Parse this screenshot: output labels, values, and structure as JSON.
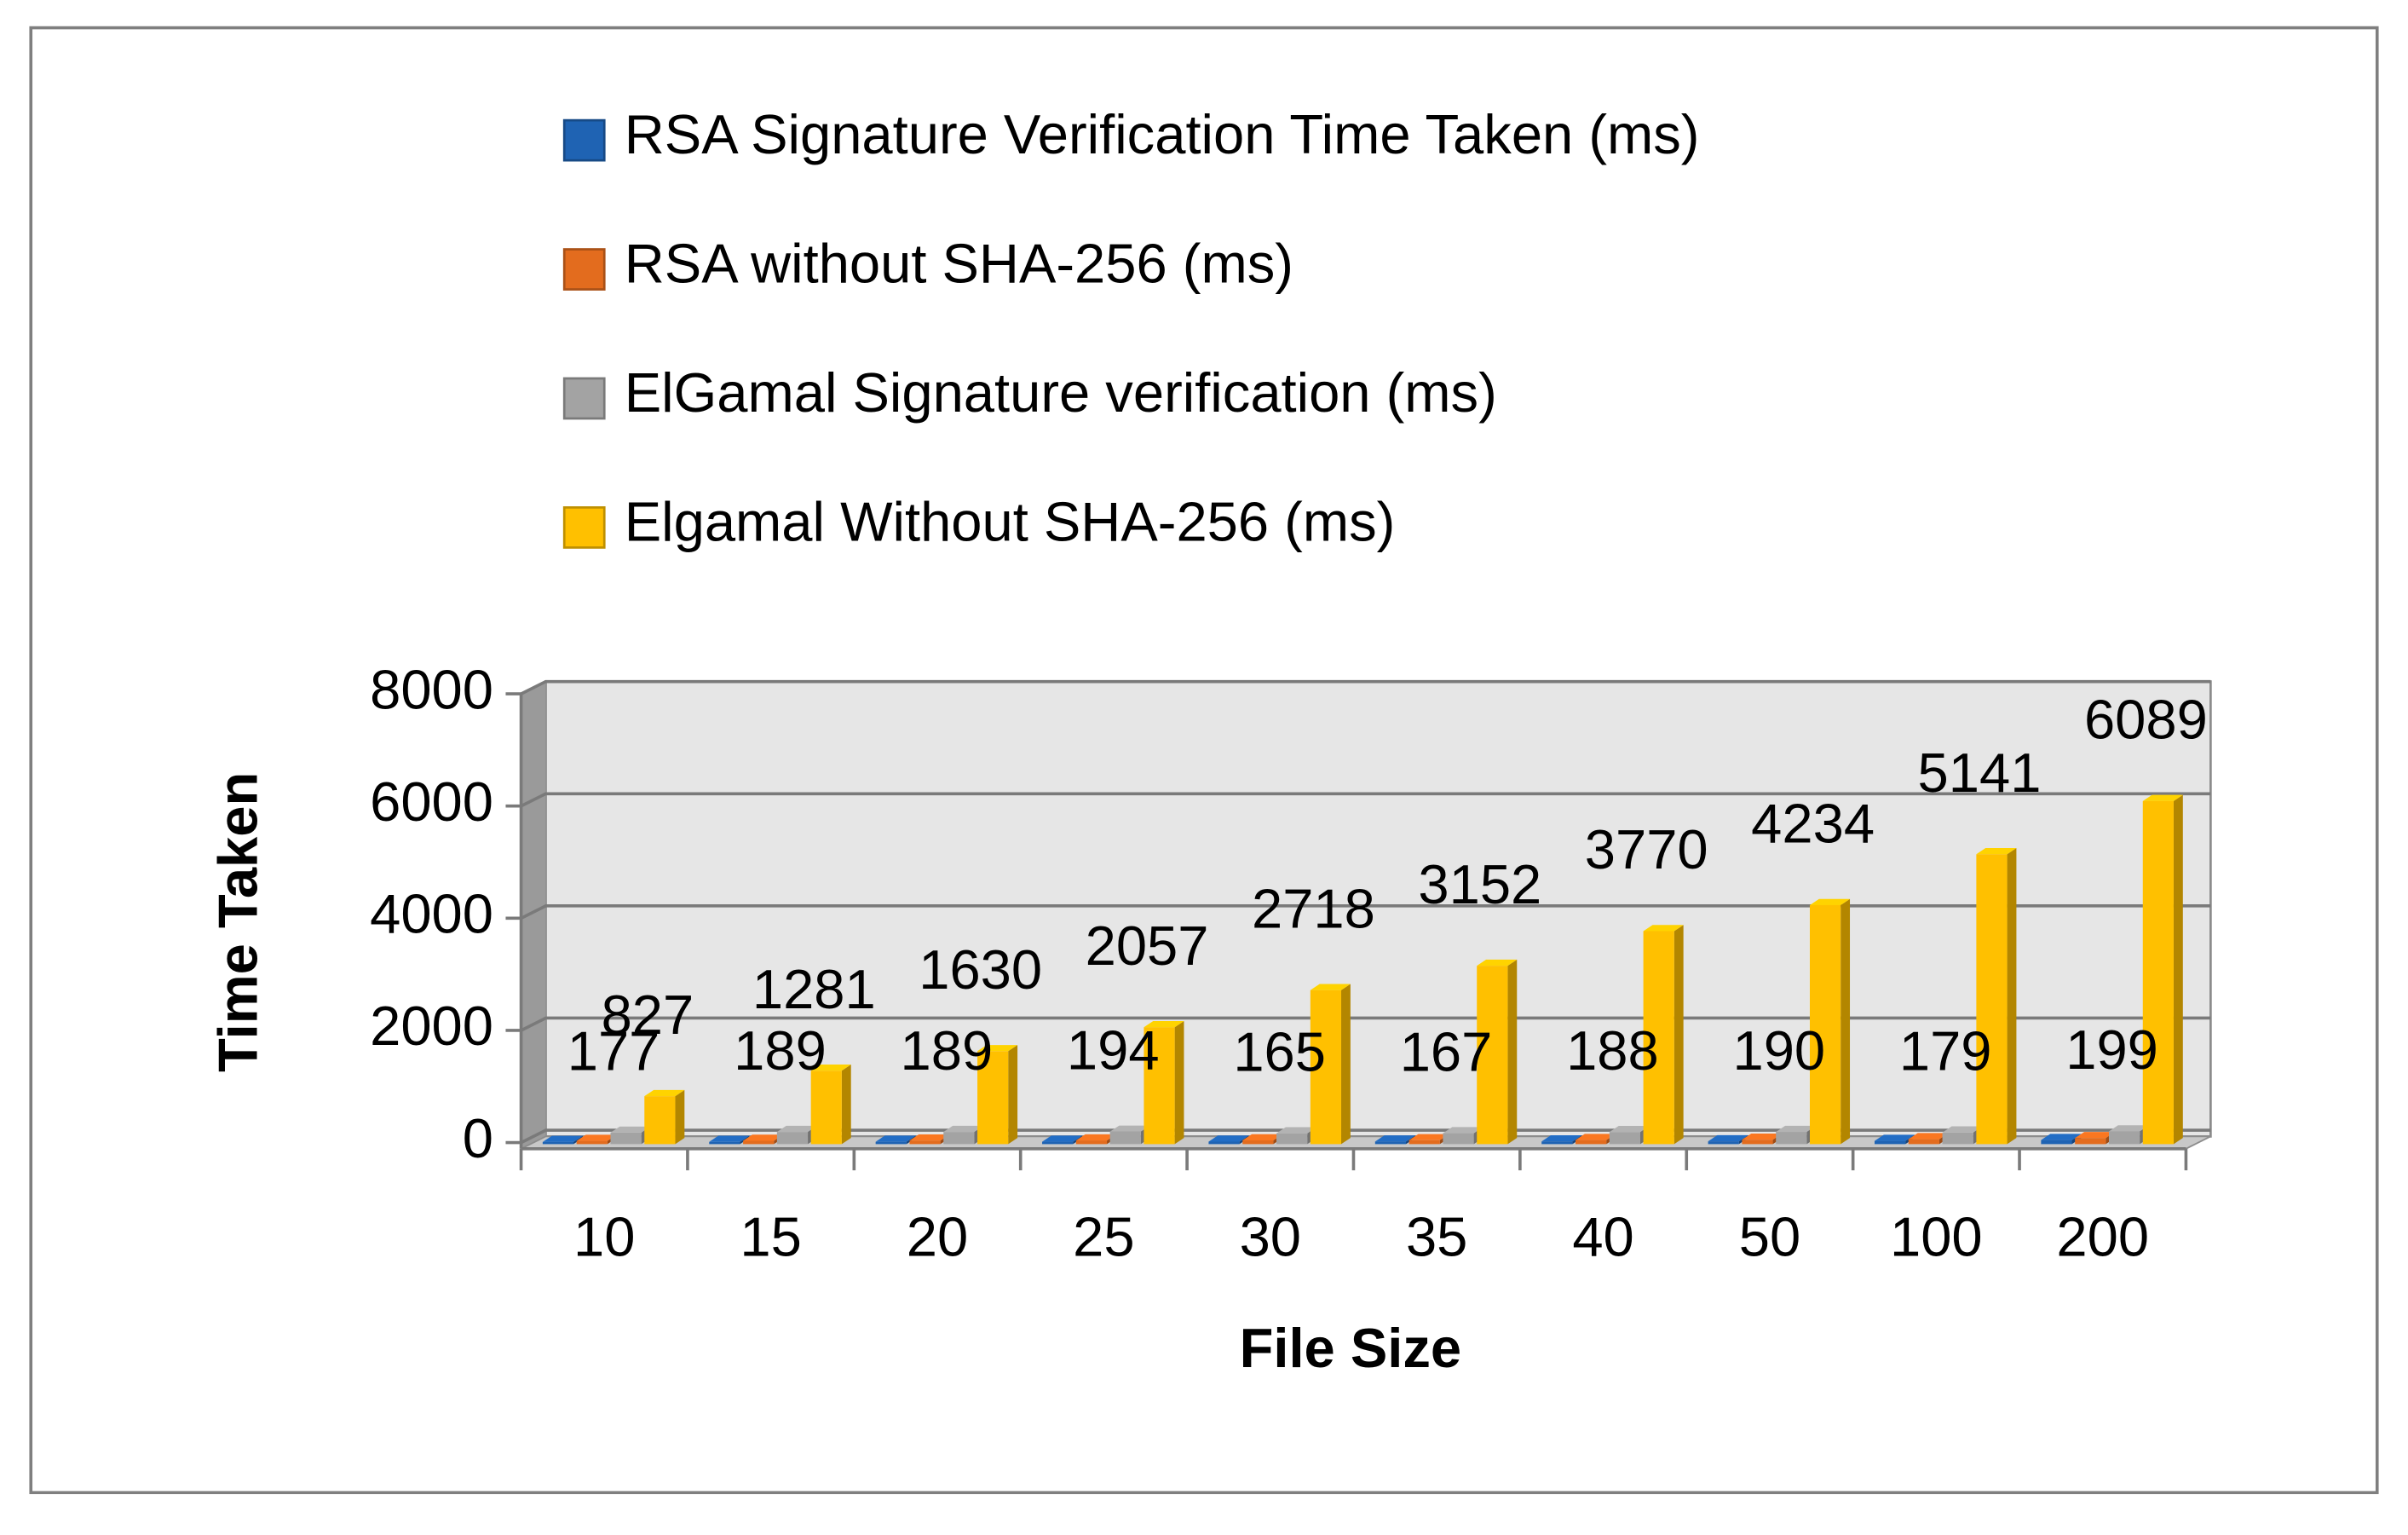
{
  "chart_data": {
    "type": "bar3d",
    "x_label": "File Size",
    "y_label": "Time Taken",
    "categories": [
      "10",
      "15",
      "20",
      "25",
      "30",
      "35",
      "40",
      "50",
      "100",
      "200"
    ],
    "series": [
      {
        "name": "RSA Signature Verification Time Taken (ms)",
        "color": "#1f63b3",
        "values": [
          10,
          12,
          14,
          15,
          17,
          18,
          20,
          22,
          30,
          45
        ]
      },
      {
        "name": "RSA without SHA-256 (ms)",
        "color": "#e36c1e",
        "values": [
          30,
          32,
          35,
          38,
          40,
          42,
          45,
          50,
          60,
          80
        ]
      },
      {
        "name": "ElGamal Signature verification (ms)",
        "color": "#a3a3a3",
        "values": [
          177,
          189,
          189,
          194,
          165,
          167,
          188,
          190,
          179,
          199
        ],
        "labels_shown": true
      },
      {
        "name": "Elgamal Without SHA-256 (ms)",
        "color": "#ffc000",
        "values": [
          827,
          1281,
          1630,
          2057,
          2718,
          3152,
          3770,
          4234,
          5141,
          6089
        ],
        "labels_shown": true
      }
    ],
    "ylim": [
      0,
      8000
    ],
    "yticks": [
      0,
      2000,
      4000,
      6000,
      8000
    ],
    "grid": true
  }
}
